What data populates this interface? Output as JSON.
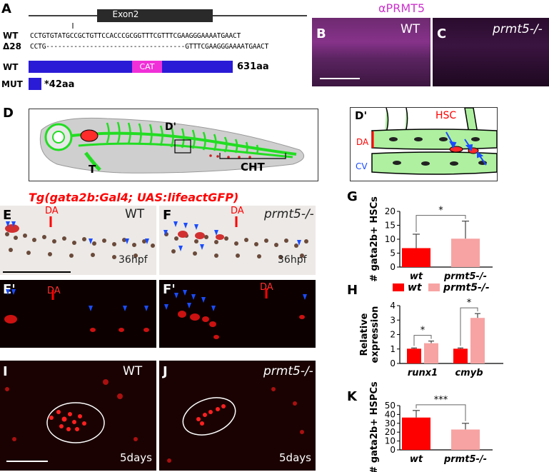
{
  "panels": {
    "A": "A",
    "B": "B",
    "C": "C",
    "D": "D",
    "Dp": "D'",
    "E": "E",
    "F": "F",
    "Ep": "E'",
    "Fp": "F'",
    "G": "G",
    "H": "H",
    "I": "I",
    "J": "J",
    "K": "K"
  },
  "panelA": {
    "exon": "Exon2",
    "wt_tag": "WT",
    "del_tag": "Δ28",
    "wt_seq": "CCTGTGTATGCCGCTGTTCCACCCGCGGTTTCGTTTCGAAGGGAAAATGAACT",
    "del_seq": "CCTG-----------------------------------GTTTCGAAGGGAAAATGAACT",
    "wt_protein": "WT",
    "mut_protein": "MUT",
    "cat": "CAT",
    "wt_len": "631aa",
    "mut_len": "*42aa"
  },
  "panelBC": {
    "title": "αPRMT5",
    "wt": "WT",
    "mut": "prmt5-/-"
  },
  "panelD": {
    "t": "T",
    "dp": "D'",
    "cht": "CHT",
    "hsc": "HSC",
    "da": "DA",
    "cv": "CV"
  },
  "panelEF": {
    "transgene": "Tg(gata2b:Gal4; UAS:lifeactGFP)",
    "wt": "WT",
    "mut": "prmt5-/-",
    "da": "DA",
    "stage": "36hpf"
  },
  "panelIJ": {
    "wt": "WT",
    "mut": "prmt5-/-",
    "stage": "5days"
  },
  "colors": {
    "wt_red": "#ff0000",
    "mut_pink": "#f7a3a3",
    "gfp_green": "#22dd22",
    "vessel_green": "#aef0a0",
    "protein_blue": "#2a1bd6",
    "cat_magenta": "#f02fd8"
  },
  "chart_data": [
    {
      "type": "bar",
      "panel": "G",
      "categories": [
        "wt",
        "prmt5-/-"
      ],
      "values": [
        6.8,
        10.2
      ],
      "errors": [
        5.0,
        6.3
      ],
      "ylabel": "# gata2b+ HSCs",
      "ylim": [
        0,
        20
      ],
      "yticks": [
        "0",
        "5",
        "10",
        "15",
        "20"
      ],
      "significance": "*"
    },
    {
      "type": "bar",
      "panel": "H",
      "categories": [
        "runx1",
        "cmyb"
      ],
      "series": [
        {
          "name": "wt",
          "values": [
            1.02,
            1.02
          ],
          "errors": [
            0.05,
            0.05
          ]
        },
        {
          "name": "prmt5-/-",
          "values": [
            1.4,
            3.15
          ],
          "errors": [
            0.15,
            0.3
          ]
        }
      ],
      "ylabel": "Relative expression",
      "ylim": [
        0,
        4
      ],
      "yticks": [
        "0",
        "1",
        "2",
        "3",
        "4"
      ],
      "significance": [
        "*",
        "*"
      ],
      "legend": "top"
    },
    {
      "type": "bar",
      "panel": "K",
      "categories": [
        "wt",
        "prmt5-/-"
      ],
      "values": [
        36.5,
        23
      ],
      "errors": [
        8.0,
        7.0
      ],
      "ylabel": "# gata2b+ HSPCs",
      "ylim": [
        0,
        50
      ],
      "yticks": [
        "0",
        "10",
        "20",
        "30",
        "40",
        "50"
      ],
      "significance": "***"
    }
  ]
}
